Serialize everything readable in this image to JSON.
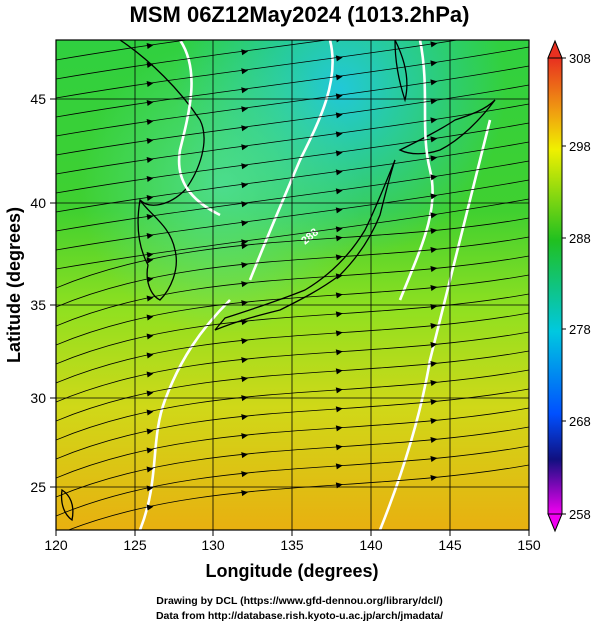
{
  "title": "MSM 06Z12May2024 (1013.2hPa)",
  "xlabel": "Longitude (degrees)",
  "ylabel": "Latitude  (degrees)",
  "x_ticks": [
    "120",
    "125",
    "130",
    "135",
    "140",
    "145",
    "150"
  ],
  "y_ticks": [
    "25",
    "30",
    "35",
    "40",
    "45"
  ],
  "colorbar": {
    "ticks": [
      "308",
      "298",
      "288",
      "278",
      "268",
      "258"
    ],
    "range": [
      258,
      308
    ],
    "colors": {
      "top": "#e83020",
      "warm": "#f0a010",
      "yellow": "#f0f000",
      "green": "#20c020",
      "cyan": "#00c8e0",
      "blue": "#0050ff",
      "navy": "#101080",
      "magenta": "#f000f0"
    }
  },
  "credits": {
    "line1": "Drawing by DCL (https://www.gfd-dennou.org/library/dcl/)",
    "line2": "Data from http://database.rish.kyoto-u.ac.jp/arch/jmadata/"
  },
  "chart_data": {
    "type": "heatmap",
    "variable": "temperature (K) with surface wind streamlines",
    "xlim": [
      120,
      150
    ],
    "ylim": [
      22.5,
      47.5
    ],
    "clim": [
      258,
      308
    ],
    "contour_labels": [
      "288"
    ]
  }
}
